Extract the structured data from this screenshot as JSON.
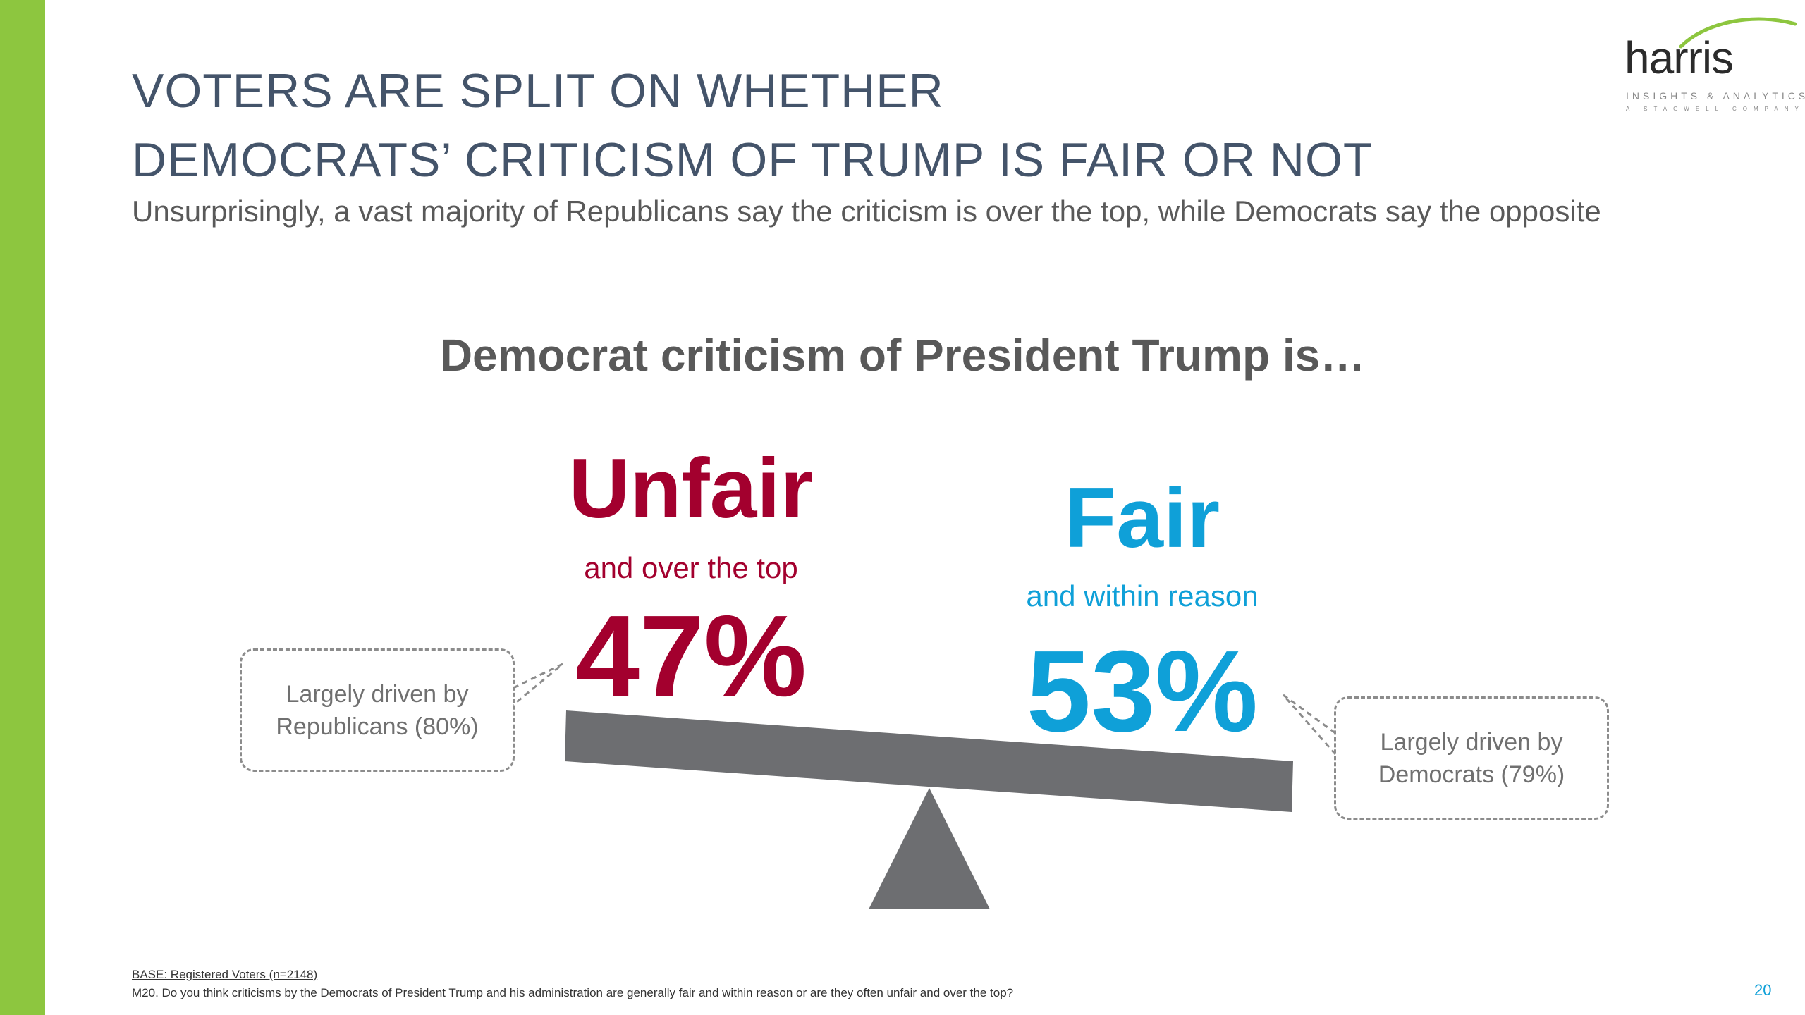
{
  "slide": {
    "title_line1": "VOTERS ARE SPLIT ON WHETHER",
    "title_line2": "DEMOCRATS’ CRITICISM OF TRUMP IS FAIR OR NOT",
    "subtitle": "Unsurprisingly, a vast majority of Republicans say the criticism is over the top, while Democrats say the opposite",
    "page_number": "20",
    "accent_color": "#8dc63f"
  },
  "logo": {
    "wordmark": "harris",
    "tagline": "INSIGHTS & ANALYTICS",
    "subline": "A STAGWELL COMPANY"
  },
  "chart": {
    "heading": "Democrat criticism of President Trump is…",
    "unfair": {
      "label": "Unfair",
      "sublabel": "and over the top",
      "percent": "47%",
      "value": 47,
      "color": "#a3002e",
      "callout_line1": "Largely driven by",
      "callout_line2": "Republicans (80%)"
    },
    "fair": {
      "label": "Fair",
      "sublabel": "and within reason",
      "percent": "53%",
      "value": 53,
      "color": "#0fa0d8",
      "callout_line1": "Largely driven by",
      "callout_line2": "Democrats (79%)"
    }
  },
  "footnotes": {
    "base": "BASE: Registered Voters (n=2148)",
    "question": "M20. Do you think criticisms by the Democrats of President Trump and his administration are generally fair and within reason or are they often unfair and over the top?"
  }
}
